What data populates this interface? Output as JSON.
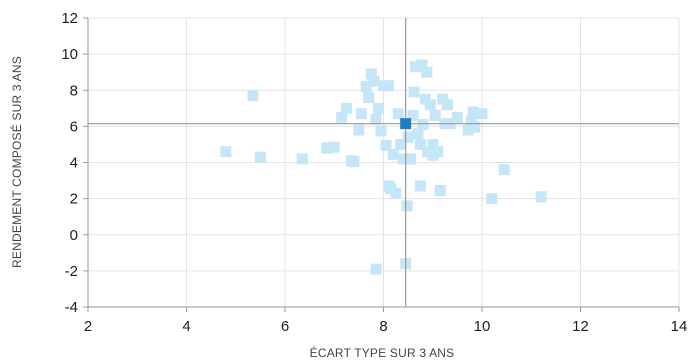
{
  "chart_data": {
    "type": "scatter",
    "title": "",
    "xlabel": "ÉCART TYPE SUR 3 ANS",
    "ylabel": "RENDEMENT COMPOSÉ SUR 3 ANS",
    "xlim": [
      2,
      14
    ],
    "ylim": [
      -4,
      12
    ],
    "x_ticks": [
      2,
      4,
      6,
      8,
      10,
      12,
      14
    ],
    "y_ticks": [
      -4,
      -2,
      0,
      2,
      4,
      6,
      8,
      10,
      12
    ],
    "grid": true,
    "reference_lines": {
      "x": 8.45,
      "y": 6.15
    },
    "colors": {
      "points": "#c5e6f6",
      "highlight": "#1f7fc6",
      "grid": "#e3e3e3",
      "axis": "#999999",
      "reference": "#999999"
    },
    "highlight_point": {
      "x": 8.45,
      "y": 6.15
    },
    "points": [
      {
        "x": 4.8,
        "y": 4.6
      },
      {
        "x": 5.35,
        "y": 7.7
      },
      {
        "x": 5.5,
        "y": 4.3
      },
      {
        "x": 6.35,
        "y": 4.2
      },
      {
        "x": 6.85,
        "y": 4.8
      },
      {
        "x": 7.0,
        "y": 4.85
      },
      {
        "x": 7.15,
        "y": 6.5
      },
      {
        "x": 7.25,
        "y": 7.0
      },
      {
        "x": 7.35,
        "y": 4.1
      },
      {
        "x": 7.4,
        "y": 4.05
      },
      {
        "x": 7.5,
        "y": 5.8
      },
      {
        "x": 7.55,
        "y": 6.7
      },
      {
        "x": 7.65,
        "y": 8.2
      },
      {
        "x": 7.7,
        "y": 7.6
      },
      {
        "x": 7.75,
        "y": 8.9
      },
      {
        "x": 7.8,
        "y": 8.5
      },
      {
        "x": 7.85,
        "y": 6.4
      },
      {
        "x": 7.9,
        "y": 7.0
      },
      {
        "x": 7.95,
        "y": 5.75
      },
      {
        "x": 7.85,
        "y": -1.9
      },
      {
        "x": 8.0,
        "y": 8.25
      },
      {
        "x": 8.05,
        "y": 4.95
      },
      {
        "x": 8.1,
        "y": 8.25
      },
      {
        "x": 8.12,
        "y": 2.7
      },
      {
        "x": 8.15,
        "y": 2.55
      },
      {
        "x": 8.2,
        "y": 4.45
      },
      {
        "x": 8.25,
        "y": 2.3
      },
      {
        "x": 8.3,
        "y": 6.7
      },
      {
        "x": 8.35,
        "y": 5.0
      },
      {
        "x": 8.4,
        "y": 4.2
      },
      {
        "x": 8.45,
        "y": -1.6
      },
      {
        "x": 8.48,
        "y": 1.6
      },
      {
        "x": 8.5,
        "y": 5.4
      },
      {
        "x": 8.55,
        "y": 4.2
      },
      {
        "x": 8.6,
        "y": 6.6
      },
      {
        "x": 8.62,
        "y": 7.9
      },
      {
        "x": 8.65,
        "y": 9.3
      },
      {
        "x": 8.7,
        "y": 5.6
      },
      {
        "x": 8.75,
        "y": 5.0
      },
      {
        "x": 8.75,
        "y": 2.7
      },
      {
        "x": 8.78,
        "y": 9.4
      },
      {
        "x": 8.8,
        "y": 6.1
      },
      {
        "x": 8.85,
        "y": 7.5
      },
      {
        "x": 8.88,
        "y": 9.0
      },
      {
        "x": 8.9,
        "y": 4.6
      },
      {
        "x": 8.95,
        "y": 7.2
      },
      {
        "x": 9.0,
        "y": 5.0
      },
      {
        "x": 9.0,
        "y": 4.4
      },
      {
        "x": 9.05,
        "y": 6.6
      },
      {
        "x": 9.1,
        "y": 4.6
      },
      {
        "x": 9.15,
        "y": 2.45
      },
      {
        "x": 9.2,
        "y": 7.5
      },
      {
        "x": 9.25,
        "y": 6.15
      },
      {
        "x": 9.3,
        "y": 7.2
      },
      {
        "x": 9.35,
        "y": 6.15
      },
      {
        "x": 9.5,
        "y": 6.5
      },
      {
        "x": 9.72,
        "y": 5.8
      },
      {
        "x": 9.78,
        "y": 6.3
      },
      {
        "x": 9.82,
        "y": 6.8
      },
      {
        "x": 9.85,
        "y": 5.95
      },
      {
        "x": 10.0,
        "y": 6.7
      },
      {
        "x": 10.2,
        "y": 2.0
      },
      {
        "x": 10.45,
        "y": 3.6
      },
      {
        "x": 11.2,
        "y": 2.1
      }
    ]
  }
}
